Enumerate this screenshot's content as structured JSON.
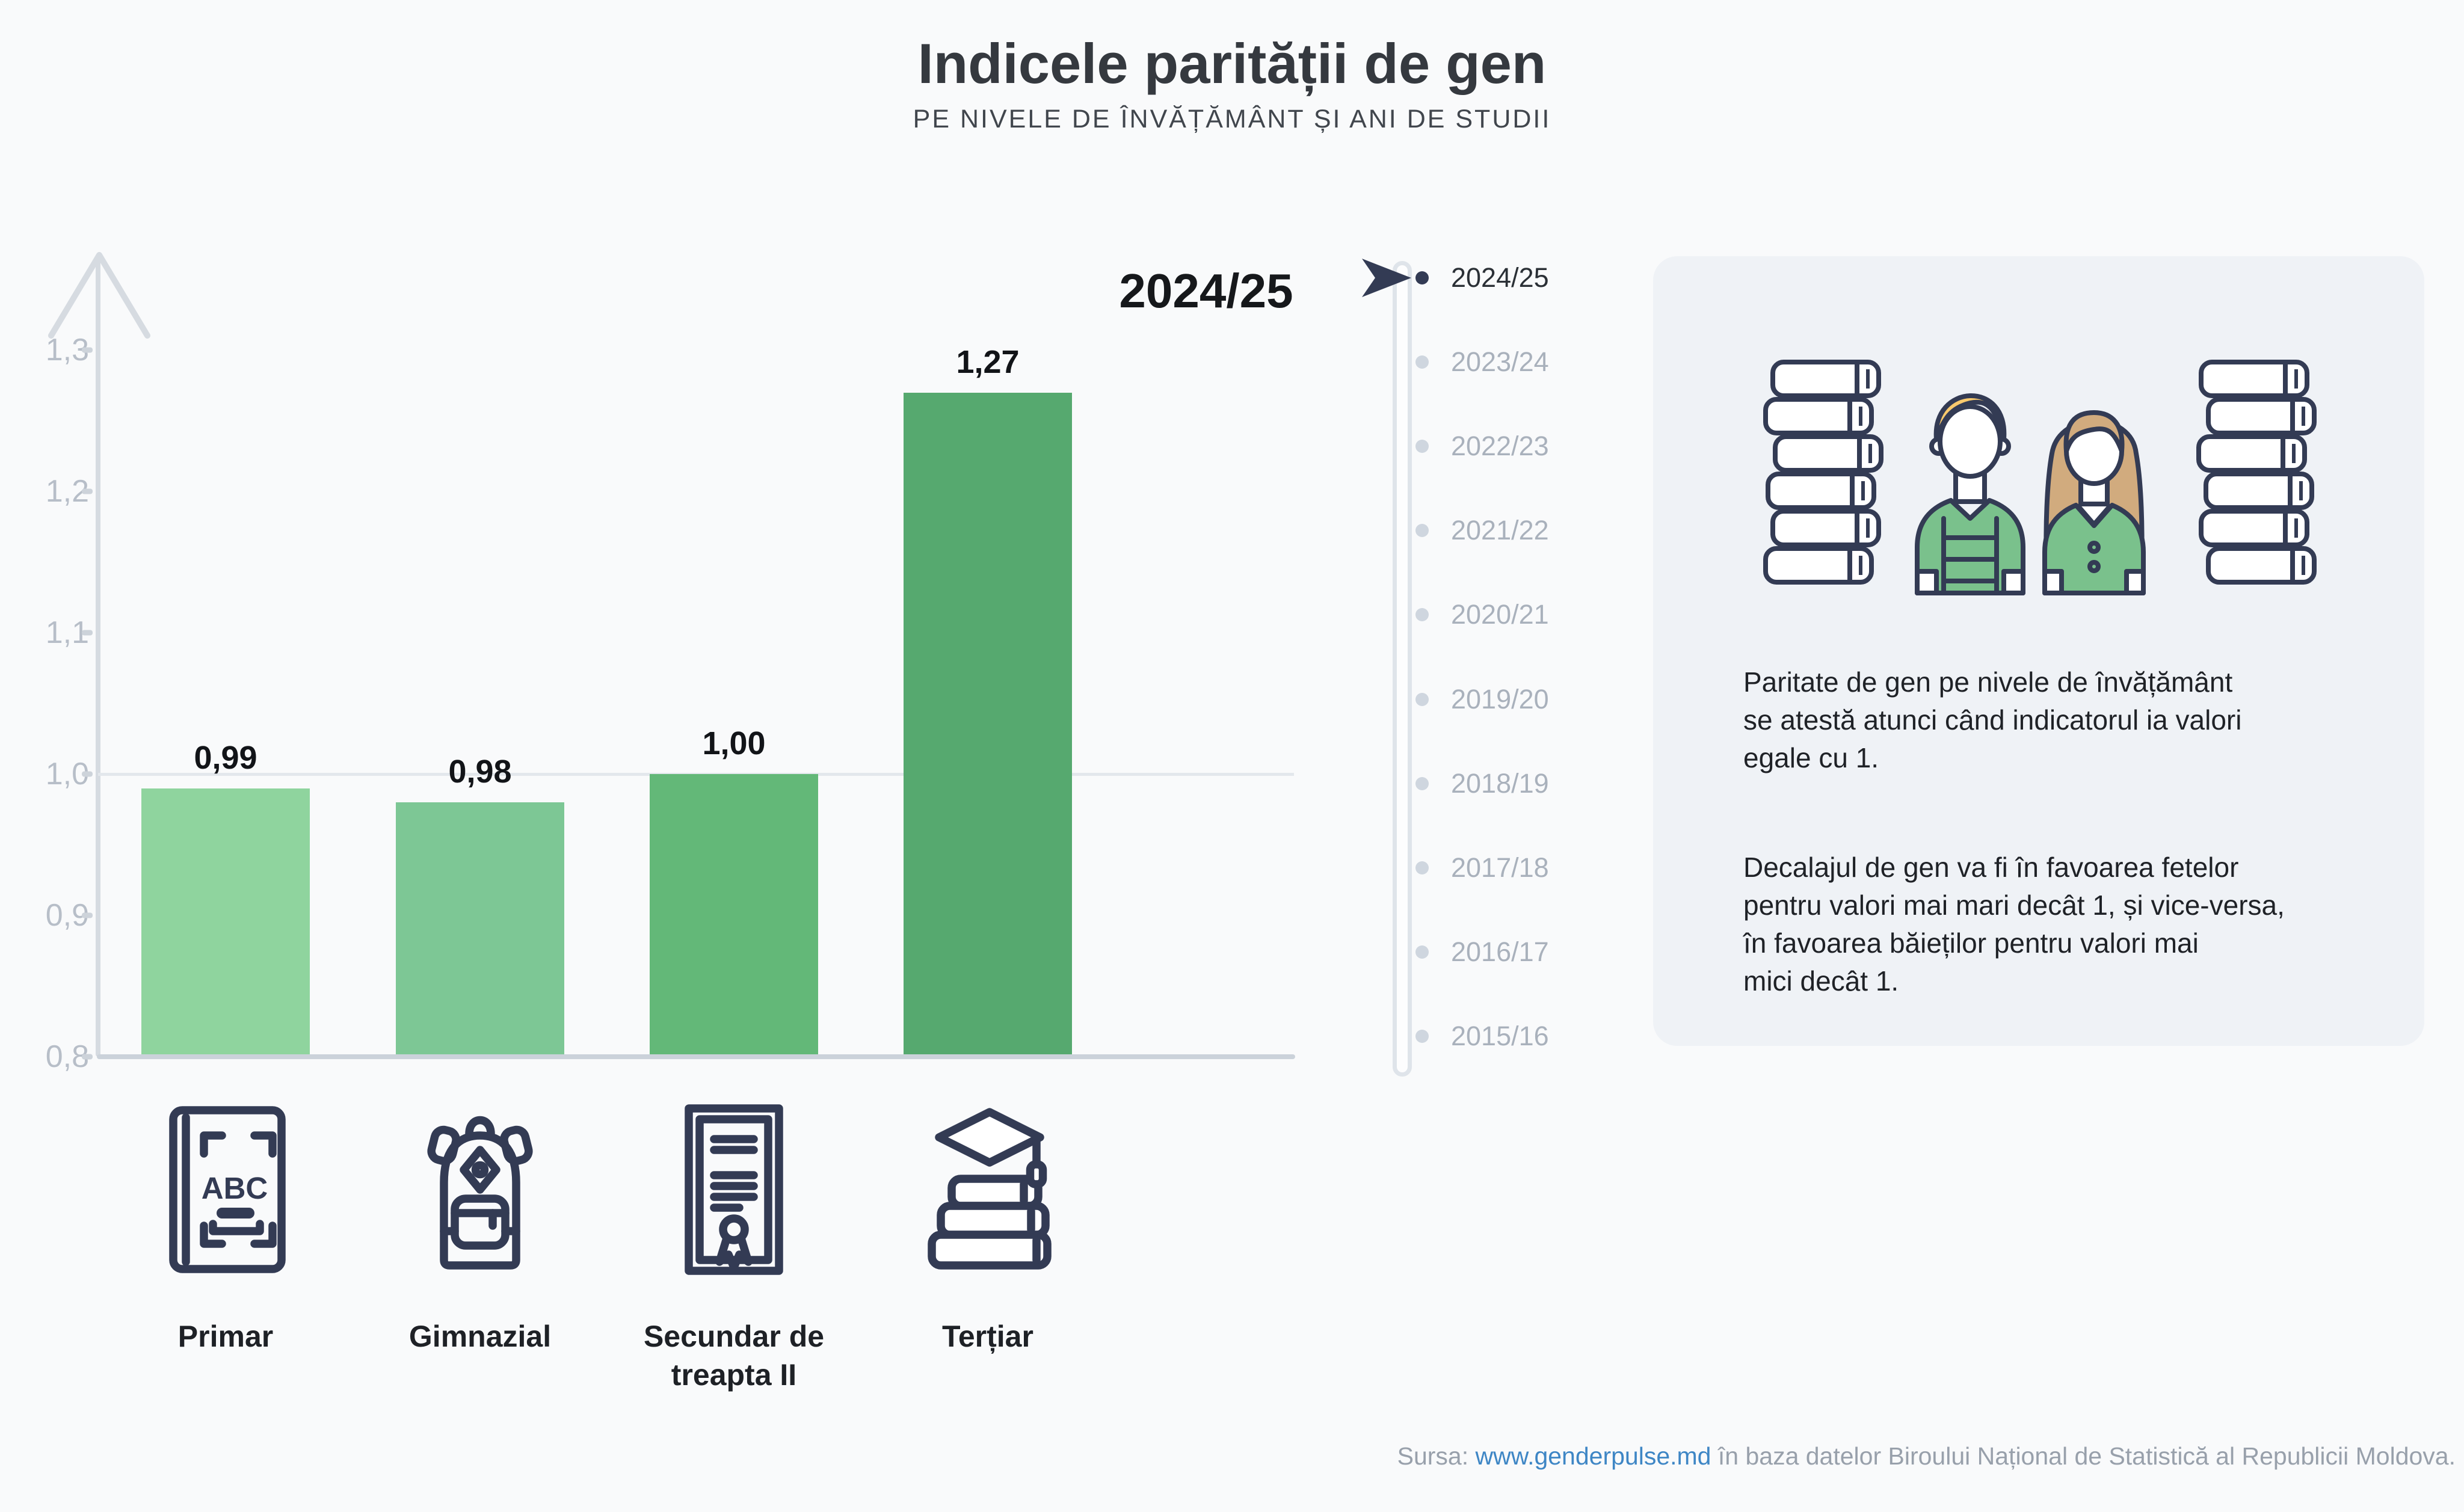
{
  "header": {
    "title": "Indicele parității de gen",
    "subtitle": "PE NIVELE DE ÎNVĂȚĂMÂNT ȘI ANI DE STUDII"
  },
  "chart_data": {
    "type": "bar",
    "title": "Indicele parității de gen",
    "subtitle": "PE NIVELE DE ÎNVĂȚĂMÂNT ȘI ANI DE STUDII",
    "selected_year": "2024/25",
    "categories": [
      "Primar",
      "Gimnazial",
      "Secundar de treapta II",
      "Terțiar"
    ],
    "values": [
      0.99,
      0.98,
      1.0,
      1.27
    ],
    "value_labels": [
      "0,99",
      "0,98",
      "1,00",
      "1,27"
    ],
    "bar_colors": [
      "#8fd49e",
      "#7dc795",
      "#63b878",
      "#56a96f"
    ],
    "ylim": [
      0.8,
      1.35
    ],
    "y_ticks": [
      {
        "label": "1,3",
        "value": 1.3
      },
      {
        "label": "1,2",
        "value": 1.2
      },
      {
        "label": "1,1",
        "value": 1.1
      },
      {
        "label": "1,0",
        "value": 1.0
      },
      {
        "label": "0,9",
        "value": 0.9
      },
      {
        "label": "0,8",
        "value": 0.8
      }
    ],
    "gridline_value": 1.0,
    "baseline_value": 0.8,
    "legend": "none",
    "grid": "horizontal line at 1,0 only"
  },
  "categories": [
    {
      "label": "Primar",
      "icon": "abc-book-icon"
    },
    {
      "label": "Gimnazial",
      "icon": "backpack-icon"
    },
    {
      "label": "Secundar de\ntreapta II",
      "icon": "diploma-icon"
    },
    {
      "label": "Terțiar",
      "icon": "graduation-books-icon"
    }
  ],
  "timeline": {
    "active_index": 0,
    "years": [
      "2024/25",
      "2023/24",
      "2022/23",
      "2021/22",
      "2020/21",
      "2019/20",
      "2018/19",
      "2017/18",
      "2016/17",
      "2015/16"
    ]
  },
  "info_box": {
    "paragraph1_lines": [
      "Paritate de gen pe nivele de învățământ",
      "se atestă atunci când indicatorul ia valori",
      "egale cu 1."
    ],
    "paragraph2_lines": [
      "Decalajul de gen va fi în favoarea fetelor",
      "pentru valori mai mari decât 1, și vice-versa,",
      "în favoarea băieților pentru valori mai",
      "mici decât 1."
    ]
  },
  "footer": {
    "prefix": "Sursa: ",
    "link": "www.genderpulse.md",
    "suffix": " în baza datelor Biroului Național de Statistică al Republicii Moldova."
  },
  "colors": {
    "background": "#f9fafb",
    "info_box_bg": "#eff2f6",
    "axis": "#d6dbe1",
    "tick_text": "#b7bec8",
    "accent_dark_navy": "#333b54",
    "timeline_inactive": "#a9b1bc",
    "link_blue": "#3e86c5",
    "shirt_green": "#7ac18c",
    "boy_hair": "#f8c96d",
    "girl_hair": "#d1ab7e"
  }
}
